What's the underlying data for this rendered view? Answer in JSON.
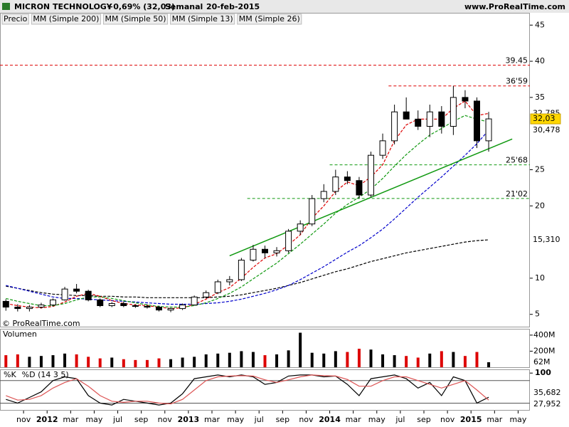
{
  "header": {
    "title": "MICRON TECHNOLOGY",
    "change": "+0,69% (32,03)",
    "period": "Semanal",
    "date": "20-feb-2015",
    "site": "www.ProRealTime.com",
    "copyright": "© ProRealTime.com"
  },
  "chart_data": [
    {
      "type": "candlestick",
      "legend_label": "Precio",
      "close_label": "32,03",
      "x": [
        "2011-09",
        "2011-10",
        "2011-11",
        "2011-12",
        "2012-01",
        "2012-02",
        "2012-03",
        "2012-04",
        "2012-05",
        "2012-06",
        "2012-07",
        "2012-08",
        "2012-09",
        "2012-10",
        "2012-11",
        "2012-12",
        "2013-01",
        "2013-02",
        "2013-03",
        "2013-04",
        "2013-05",
        "2013-06",
        "2013-07",
        "2013-08",
        "2013-09",
        "2013-10",
        "2013-11",
        "2013-12",
        "2014-01",
        "2014-02",
        "2014-03",
        "2014-04",
        "2014-05",
        "2014-06",
        "2014-07",
        "2014-08",
        "2014-09",
        "2014-10",
        "2014-11",
        "2014-12",
        "2015-01",
        "2015-02"
      ],
      "open": [
        6.8,
        6.0,
        5.8,
        6.0,
        6.3,
        7.0,
        8.5,
        8.2,
        7.0,
        6.2,
        6.5,
        6.2,
        6.1,
        6.0,
        5.6,
        5.8,
        6.3,
        7.4,
        8.0,
        9.5,
        9.8,
        12.5,
        14.0,
        13.5,
        13.8,
        16.5,
        17.5,
        21.0,
        22.0,
        24.0,
        23.5,
        21.5,
        27.0,
        29.0,
        33.0,
        32.0,
        31.0,
        33.0,
        31.0,
        35.0,
        34.5,
        29.0
      ],
      "high": [
        7.1,
        6.4,
        6.3,
        6.6,
        7.2,
        8.8,
        9.2,
        8.4,
        7.2,
        6.7,
        6.8,
        6.4,
        6.4,
        6.2,
        5.9,
        6.5,
        7.6,
        8.3,
        9.8,
        10.3,
        12.8,
        14.6,
        14.5,
        14.3,
        16.8,
        18.0,
        21.5,
        23.0,
        25.0,
        24.8,
        24.0,
        27.5,
        30.0,
        34.0,
        35.0,
        33.2,
        34.0,
        33.8,
        36.59,
        36.0,
        35.0,
        33.0
      ],
      "low": [
        5.5,
        5.4,
        5.4,
        5.8,
        6.1,
        6.9,
        7.9,
        6.8,
        6.0,
        6.0,
        6.0,
        5.9,
        5.8,
        5.4,
        5.3,
        5.6,
        6.2,
        7.2,
        7.8,
        9.0,
        9.6,
        12.3,
        12.8,
        13.0,
        13.5,
        16.0,
        17.2,
        20.5,
        21.5,
        23.0,
        21.0,
        21.2,
        26.5,
        28.5,
        32.0,
        30.5,
        29.5,
        30.0,
        29.8,
        33.5,
        28.0,
        27.5
      ],
      "close": [
        6.0,
        5.8,
        6.0,
        6.3,
        7.0,
        8.5,
        8.2,
        7.0,
        6.2,
        6.5,
        6.2,
        6.1,
        6.0,
        5.6,
        5.8,
        6.3,
        7.4,
        8.0,
        9.5,
        9.8,
        12.5,
        14.0,
        13.5,
        13.8,
        16.5,
        17.5,
        21.0,
        22.0,
        24.0,
        23.5,
        21.5,
        27.0,
        29.0,
        33.0,
        32.0,
        31.0,
        33.0,
        31.0,
        35.0,
        34.5,
        29.0,
        32.03
      ],
      "series": [
        {
          "name": "MM (Simple 200)",
          "color": "#000000",
          "last_label": "15,310",
          "values": [
            8.9,
            8.6,
            8.3,
            8.0,
            7.8,
            7.7,
            7.6,
            7.6,
            7.5,
            7.5,
            7.4,
            7.4,
            7.3,
            7.3,
            7.3,
            7.3,
            7.3,
            7.3,
            7.4,
            7.5,
            7.7,
            8.0,
            8.3,
            8.6,
            9.0,
            9.4,
            9.9,
            10.4,
            10.9,
            11.3,
            11.8,
            12.3,
            12.7,
            13.1,
            13.5,
            13.8,
            14.1,
            14.4,
            14.7,
            15.0,
            15.2,
            15.31
          ]
        },
        {
          "name": "MM (Simple 50)",
          "color": "#0000cc",
          "last_label": "30,478",
          "values": [
            9.0,
            8.6,
            8.2,
            7.8,
            7.4,
            7.2,
            7.2,
            7.1,
            7.0,
            6.9,
            6.8,
            6.7,
            6.6,
            6.5,
            6.4,
            6.4,
            6.4,
            6.5,
            6.6,
            6.8,
            7.1,
            7.5,
            7.9,
            8.4,
            9.0,
            9.8,
            10.7,
            11.6,
            12.6,
            13.6,
            14.5,
            15.6,
            16.8,
            18.2,
            19.7,
            21.2,
            22.6,
            24.0,
            25.5,
            27.0,
            28.6,
            30.478
          ]
        },
        {
          "name": "MM (Simple 13)",
          "color": "#dd0000",
          "last_label": "32,785",
          "values": [
            6.5,
            6.2,
            6.0,
            5.9,
            6.1,
            6.7,
            7.5,
            7.9,
            7.5,
            6.9,
            6.5,
            6.3,
            6.2,
            6.0,
            5.8,
            5.9,
            6.4,
            7.1,
            8.0,
            8.7,
            10.0,
            11.5,
            12.8,
            13.4,
            14.6,
            16.0,
            18.3,
            20.0,
            22.0,
            23.3,
            22.8,
            24.0,
            25.7,
            29.0,
            31.2,
            32.0,
            32.0,
            32.0,
            33.5,
            34.5,
            32.5,
            32.785
          ]
        },
        {
          "name": "MM (Simple 26)",
          "color": "#119911",
          "values": [
            7.2,
            6.8,
            6.5,
            6.2,
            6.2,
            6.5,
            7.0,
            7.4,
            7.4,
            7.2,
            6.9,
            6.6,
            6.3,
            6.1,
            6.0,
            6.0,
            6.2,
            6.6,
            7.2,
            7.9,
            8.8,
            9.9,
            11.0,
            12.1,
            13.4,
            14.7,
            16.1,
            17.5,
            19.0,
            20.2,
            21.2,
            22.3,
            23.8,
            25.5,
            27.1,
            28.5,
            29.8,
            30.7,
            31.7,
            32.5,
            32.0,
            31.6
          ]
        }
      ],
      "levels": [
        {
          "value": 39.45,
          "label": "39.45",
          "color": "#dd0000",
          "from": "2011-09"
        },
        {
          "value": 36.59,
          "label": "36'59",
          "color": "#dd0000",
          "from": "2014-06"
        },
        {
          "value": 25.68,
          "label": "25'68",
          "color": "#119911",
          "from": "2014-01"
        },
        {
          "value": 21.02,
          "label": "21'02",
          "color": "#119911",
          "from": "2013-06"
        }
      ],
      "trendline": {
        "x": [
          "2013-04",
          "2015-04"
        ],
        "y": [
          13.1,
          29.25
        ],
        "color": "#119911"
      },
      "xlim": [
        "2011-09",
        "2015-06"
      ],
      "ylim": [
        3.2,
        46.7
      ],
      "yticks": [
        5,
        10,
        20,
        25,
        35,
        40,
        45
      ],
      "xticks": [
        {
          "value": "2011-11",
          "label": "nov"
        },
        {
          "value": "2012-01",
          "label": "2012"
        },
        {
          "value": "2012-03",
          "label": "mar"
        },
        {
          "value": "2012-05",
          "label": "may"
        },
        {
          "value": "2012-07",
          "label": "jul"
        },
        {
          "value": "2012-09",
          "label": "sep"
        },
        {
          "value": "2012-11",
          "label": "nov"
        },
        {
          "value": "2013-01",
          "label": "2013"
        },
        {
          "value": "2013-03",
          "label": "mar"
        },
        {
          "value": "2013-05",
          "label": "may"
        },
        {
          "value": "2013-07",
          "label": "jul"
        },
        {
          "value": "2013-09",
          "label": "sep"
        },
        {
          "value": "2013-11",
          "label": "nov"
        },
        {
          "value": "2014-01",
          "label": "2014"
        },
        {
          "value": "2014-03",
          "label": "mar"
        },
        {
          "value": "2014-05",
          "label": "may"
        },
        {
          "value": "2014-07",
          "label": "jul"
        },
        {
          "value": "2014-09",
          "label": "sep"
        },
        {
          "value": "2014-11",
          "label": "nov"
        },
        {
          "value": "2015-01",
          "label": "2015"
        },
        {
          "value": "2015-03",
          "label": "mar"
        },
        {
          "value": "2015-05",
          "label": "may"
        }
      ]
    },
    {
      "type": "bar",
      "title": "Volumen",
      "last_label": "62M",
      "up_color": "#000000",
      "down_color": "#dd0000",
      "values": [
        150,
        160,
        130,
        140,
        150,
        170,
        160,
        130,
        110,
        120,
        100,
        90,
        90,
        110,
        100,
        120,
        130,
        160,
        170,
        180,
        200,
        190,
        150,
        160,
        210,
        430,
        180,
        170,
        200,
        190,
        230,
        220,
        160,
        150,
        140,
        120,
        170,
        200,
        190,
        140,
        190,
        62
      ],
      "ylim": [
        0,
        470
      ],
      "yticks": [
        {
          "value": 200,
          "label": "200M"
        },
        {
          "value": 400,
          "label": "400M"
        }
      ]
    },
    {
      "type": "line",
      "ylim": [
        0,
        108
      ],
      "yticks": [
        100
      ],
      "levels": [
        20,
        80
      ],
      "series": [
        {
          "name": "%K",
          "color": "#000000",
          "last_label": "35,682",
          "values": [
            30,
            20,
            35,
            50,
            80,
            90,
            85,
            40,
            20,
            15,
            30,
            25,
            20,
            15,
            20,
            45,
            85,
            90,
            95,
            90,
            95,
            90,
            70,
            75,
            92,
            95,
            95,
            90,
            92,
            70,
            40,
            85,
            90,
            95,
            85,
            60,
            75,
            40,
            90,
            80,
            20,
            35.682
          ]
        },
        {
          "name": "%D (14 3 5)",
          "color": "#dd5555",
          "last_label": "27,952",
          "values": [
            40,
            28,
            30,
            40,
            60,
            75,
            85,
            65,
            40,
            25,
            22,
            25,
            25,
            20,
            18,
            30,
            55,
            80,
            90,
            92,
            93,
            92,
            82,
            75,
            82,
            90,
            95,
            93,
            92,
            83,
            65,
            65,
            80,
            90,
            90,
            80,
            70,
            60,
            70,
            80,
            55,
            27.952
          ]
        }
      ]
    }
  ]
}
